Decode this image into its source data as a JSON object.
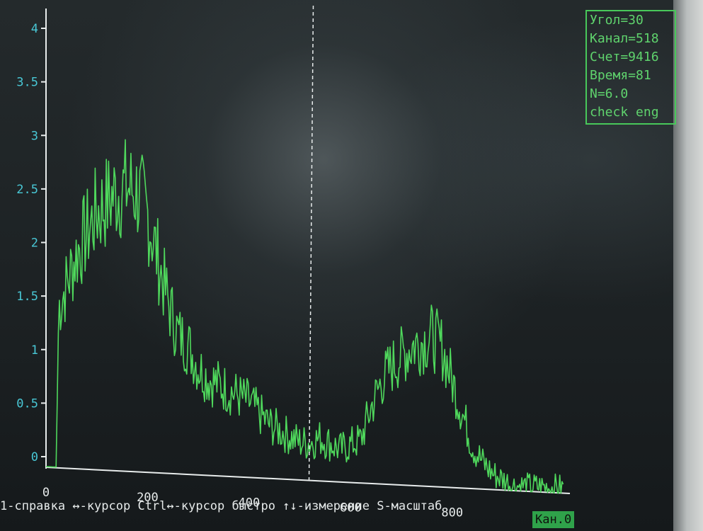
{
  "info": {
    "angle": "Угол=30",
    "channel": "Канал=518",
    "count": "Счет=9416",
    "time": "Время=81",
    "n": "N=6.0",
    "check": "check eng"
  },
  "status": {
    "help": "1-справка ↔-курсор Ctrl↔-курсор быстро ↑↓-измерение S-масштаб",
    "badge": "Кан.0"
  },
  "colors": {
    "trace": "#4fd85c",
    "axis": "#e8ecec",
    "tick_y": "#49c8d6",
    "info": "#5fd36d",
    "cursor": "#e8ecec"
  },
  "chart_data": {
    "type": "line",
    "title": "",
    "xlabel": "",
    "ylabel": "",
    "xlim": [
      0,
      1050
    ],
    "ylim": [
      0,
      4
    ],
    "yticks": [
      "0",
      "0.5",
      "1",
      "1.5",
      "2",
      "2.5",
      "3",
      "3.5",
      "4"
    ],
    "xticks": [
      "0",
      "200",
      "400",
      "600",
      "800"
    ],
    "cursor_x": 518,
    "x": [
      0,
      20,
      25,
      40,
      60,
      80,
      100,
      120,
      140,
      160,
      180,
      200,
      220,
      240,
      260,
      280,
      300,
      320,
      340,
      360,
      380,
      400,
      420,
      440,
      460,
      480,
      500,
      520,
      540,
      560,
      580,
      600,
      620,
      640,
      660,
      680,
      700,
      720,
      740,
      760,
      780,
      800,
      820,
      840,
      860,
      880,
      900,
      920,
      940,
      960,
      980,
      1000,
      1020
    ],
    "series": [
      {
        "values": [
          0,
          0,
          1.5,
          1.7,
          2.0,
          2.2,
          2.4,
          2.5,
          2.6,
          2.65,
          2.6,
          2.4,
          2.0,
          1.6,
          1.3,
          1.2,
          1.0,
          0.9,
          0.85,
          0.8,
          0.75,
          0.7,
          0.6,
          0.5,
          0.45,
          0.4,
          0.35,
          0.35,
          0.4,
          0.35,
          0.3,
          0.35,
          0.4,
          0.7,
          0.95,
          1.1,
          1.2,
          1.3,
          1.35,
          1.4,
          1.3,
          1.0,
          0.7,
          0.4,
          0.25,
          0.15,
          0.1,
          0.05,
          0.05,
          0.05,
          0.05,
          0.05,
          0.05
        ]
      }
    ]
  }
}
